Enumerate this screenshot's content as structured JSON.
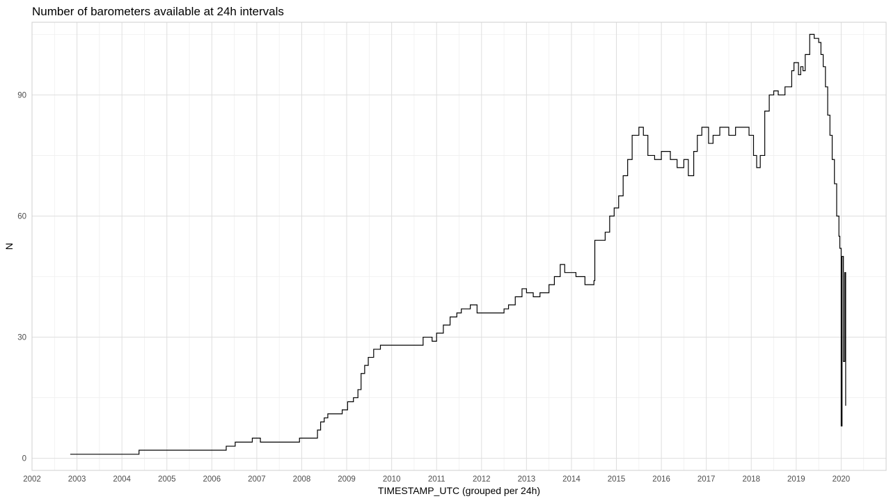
{
  "chart_data": {
    "type": "line",
    "title": "Number of barometers available at 24h intervals",
    "xlabel": "TIMESTAMP_UTC (grouped per 24h)",
    "ylabel": "N",
    "x_type": "year",
    "xlim": [
      2002,
      2021
    ],
    "ylim": [
      -3,
      108
    ],
    "x_ticks": [
      "2002",
      "2003",
      "2004",
      "2005",
      "2006",
      "2007",
      "2008",
      "2009",
      "2010",
      "2011",
      "2012",
      "2013",
      "2014",
      "2015",
      "2016",
      "2017",
      "2018",
      "2019",
      "2020"
    ],
    "y_ticks": [
      "0",
      "30",
      "60",
      "90"
    ],
    "grid": true,
    "legend": "none",
    "line_color": "#000000",
    "series": [
      {
        "x": [
          2002.85,
          2004.35,
          2004.38,
          2006.3,
          2006.32,
          2006.5,
          2006.52,
          2006.8,
          2006.9,
          2007.0,
          2007.08,
          2007.45,
          2007.95,
          2008.25,
          2008.35,
          2008.42,
          2008.5,
          2008.58,
          2008.7,
          2008.9,
          2009.02,
          2009.15,
          2009.25,
          2009.32,
          2009.4,
          2009.48,
          2009.6,
          2009.75,
          2009.92,
          2010.6,
          2010.7,
          2010.9,
          2011.0,
          2011.15,
          2011.3,
          2011.45,
          2011.55,
          2011.75,
          2011.9,
          2012.1,
          2012.3,
          2012.5,
          2012.6,
          2012.75,
          2012.9,
          2013.0,
          2013.15,
          2013.3,
          2013.5,
          2013.62,
          2013.75,
          2013.85,
          2014.1,
          2014.3,
          2014.5,
          2014.52,
          2014.75,
          2014.85,
          2014.95,
          2015.05,
          2015.15,
          2015.25,
          2015.35,
          2015.5,
          2015.6,
          2015.7,
          2015.85,
          2016.0,
          2016.2,
          2016.35,
          2016.5,
          2016.6,
          2016.72,
          2016.8,
          2016.9,
          2017.05,
          2017.15,
          2017.3,
          2017.5,
          2017.65,
          2017.75,
          2017.85,
          2017.95,
          2018.05,
          2018.12,
          2018.2,
          2018.3,
          2018.4,
          2018.5,
          2018.6,
          2018.75,
          2018.9,
          2018.95,
          2019.05,
          2019.1,
          2019.15,
          2019.2,
          2019.3,
          2019.4,
          2019.5,
          2019.55,
          2019.6,
          2019.65,
          2019.7,
          2019.75,
          2019.8,
          2019.85,
          2019.9,
          2019.95,
          2019.97,
          2020.0,
          2020.02,
          2020.05,
          2020.08,
          2020.1
        ],
        "y": [
          1,
          1,
          2,
          2,
          3,
          3,
          4,
          4,
          5,
          5,
          4,
          4,
          5,
          5,
          7,
          9,
          10,
          11,
          11,
          12,
          14,
          15,
          17,
          21,
          23,
          25,
          27,
          28,
          28,
          28,
          30,
          29,
          31,
          33,
          35,
          36,
          37,
          38,
          36,
          36,
          36,
          37,
          38,
          40,
          42,
          41,
          40,
          41,
          43,
          45,
          48,
          46,
          45,
          43,
          44,
          54,
          56,
          60,
          62,
          65,
          70,
          74,
          80,
          82,
          80,
          75,
          74,
          76,
          74,
          72,
          74,
          70,
          76,
          80,
          82,
          78,
          80,
          82,
          80,
          82,
          82,
          82,
          80,
          75,
          72,
          75,
          86,
          90,
          91,
          90,
          92,
          96,
          98,
          95,
          97,
          96,
          100,
          105,
          104,
          103,
          100,
          97,
          92,
          85,
          80,
          74,
          68,
          60,
          55,
          52,
          8,
          50,
          24,
          46,
          13
        ]
      }
    ]
  }
}
